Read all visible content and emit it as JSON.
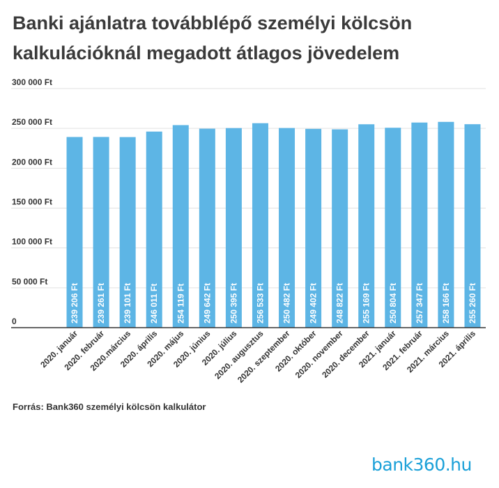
{
  "title": "Banki ajánlatra továbblépő személyi kölcsön kalkulációknál megadott átlagos jövedelem",
  "source": "Forrás: Bank360 személyi kölcsön kalkulátor",
  "logo": "bank360.hu",
  "colors": {
    "bar": "#5db5e5",
    "grid": "#e0e0e0",
    "axis": "#333333",
    "bar_label": "#ffffff"
  },
  "chart_data": {
    "type": "bar",
    "title": "Banki ajánlatra továbblépő személyi kölcsön kalkulációknál megadott átlagos jövedelem",
    "xlabel": "",
    "ylabel": "",
    "ylim": [
      0,
      300000
    ],
    "yticks": [
      0,
      50000,
      100000,
      150000,
      200000,
      250000,
      300000
    ],
    "ytick_labels": [
      "0",
      "50 000 Ft",
      "100 000 Ft",
      "150 000 Ft",
      "200 000 Ft",
      "250 000 Ft",
      "300 000 Ft"
    ],
    "grid": true,
    "categories": [
      "2020. január",
      "2020. február",
      "2020.március",
      "2020. április",
      "2020. május",
      "2020. június",
      "2020. július",
      "2020. augusztus",
      "2020. szeptember",
      "2020. október",
      "2020. november",
      "2020. december",
      "2021. január",
      "2021. február",
      "2021. március",
      "2021. április"
    ],
    "values": [
      239206,
      239261,
      239101,
      246011,
      254119,
      249642,
      250395,
      256533,
      250482,
      249402,
      248822,
      255169,
      250804,
      257347,
      258166,
      255260
    ],
    "value_labels": [
      "239 206 Ft",
      "239 261 Ft",
      "239 101 Ft",
      "246 011 Ft",
      "254 119 Ft",
      "249 642 Ft",
      "250 395 Ft",
      "256 533 Ft",
      "250 482 Ft",
      "249 402 Ft",
      "248 822 Ft",
      "255 169 Ft",
      "250 804 Ft",
      "257 347 Ft",
      "258 166 Ft",
      "255 260 Ft"
    ]
  }
}
